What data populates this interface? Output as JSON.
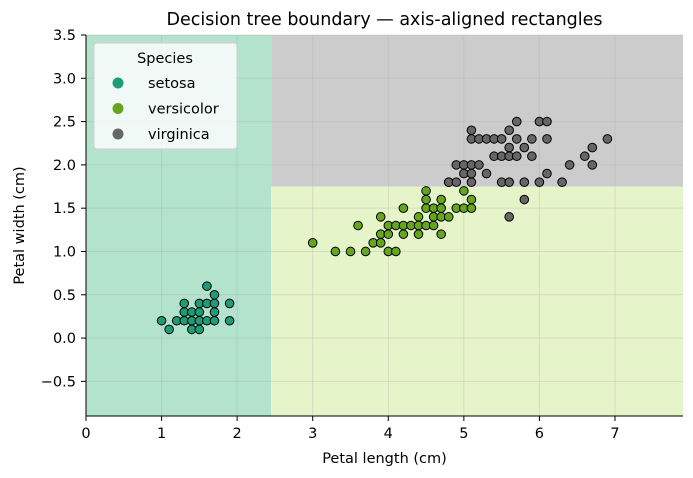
{
  "chart_data": {
    "type": "scatter",
    "title": "Decision tree boundary — axis-aligned rectangles",
    "xlabel": "Petal length (cm)",
    "ylabel": "Petal width (cm)",
    "xlim": [
      0,
      7.9
    ],
    "ylim": [
      -0.9,
      3.5
    ],
    "xticks": [
      0,
      1,
      2,
      3,
      4,
      5,
      6,
      7
    ],
    "xtick_labels": [
      "0",
      "1",
      "2",
      "3",
      "4",
      "5",
      "6",
      "7"
    ],
    "yticks": [
      -0.5,
      0.0,
      0.5,
      1.0,
      1.5,
      2.0,
      2.5,
      3.0,
      3.5
    ],
    "ytick_labels": [
      "−0.5",
      "0.0",
      "0.5",
      "1.0",
      "1.5",
      "2.0",
      "2.5",
      "3.0",
      "3.5"
    ],
    "grid": true,
    "legend": {
      "title": "Species",
      "position": "top-left"
    },
    "regions": [
      {
        "class": "setosa",
        "x": [
          0,
          2.45
        ],
        "y": [
          -0.9,
          3.5
        ],
        "color": "#b3e2cd"
      },
      {
        "class": "versicolor",
        "x": [
          2.45,
          7.9
        ],
        "y": [
          -0.9,
          1.75
        ],
        "color": "#e6f5c9"
      },
      {
        "class": "virginica",
        "x": [
          2.45,
          7.9
        ],
        "y": [
          1.75,
          3.5
        ],
        "color": "#cccccc"
      }
    ],
    "series": [
      {
        "name": "setosa",
        "color": "#1b9e77",
        "points": [
          [
            1.0,
            0.2
          ],
          [
            1.1,
            0.1
          ],
          [
            1.2,
            0.2
          ],
          [
            1.3,
            0.2
          ],
          [
            1.3,
            0.3
          ],
          [
            1.3,
            0.4
          ],
          [
            1.4,
            0.1
          ],
          [
            1.4,
            0.2
          ],
          [
            1.4,
            0.3
          ],
          [
            1.5,
            0.1
          ],
          [
            1.5,
            0.2
          ],
          [
            1.5,
            0.3
          ],
          [
            1.5,
            0.4
          ],
          [
            1.6,
            0.2
          ],
          [
            1.6,
            0.4
          ],
          [
            1.6,
            0.6
          ],
          [
            1.7,
            0.2
          ],
          [
            1.7,
            0.3
          ],
          [
            1.7,
            0.4
          ],
          [
            1.7,
            0.5
          ],
          [
            1.9,
            0.2
          ],
          [
            1.9,
            0.4
          ]
        ]
      },
      {
        "name": "versicolor",
        "color": "#66a61e",
        "points": [
          [
            3.0,
            1.1
          ],
          [
            3.3,
            1.0
          ],
          [
            3.5,
            1.0
          ],
          [
            3.6,
            1.3
          ],
          [
            3.7,
            1.0
          ],
          [
            3.8,
            1.1
          ],
          [
            3.9,
            1.1
          ],
          [
            3.9,
            1.2
          ],
          [
            3.9,
            1.4
          ],
          [
            4.0,
            1.0
          ],
          [
            4.0,
            1.2
          ],
          [
            4.0,
            1.3
          ],
          [
            4.1,
            1.0
          ],
          [
            4.1,
            1.3
          ],
          [
            4.2,
            1.2
          ],
          [
            4.2,
            1.3
          ],
          [
            4.2,
            1.5
          ],
          [
            4.3,
            1.3
          ],
          [
            4.4,
            1.2
          ],
          [
            4.4,
            1.3
          ],
          [
            4.4,
            1.4
          ],
          [
            4.5,
            1.3
          ],
          [
            4.5,
            1.5
          ],
          [
            4.5,
            1.6
          ],
          [
            4.5,
            1.7
          ],
          [
            4.6,
            1.3
          ],
          [
            4.6,
            1.4
          ],
          [
            4.6,
            1.5
          ],
          [
            4.7,
            1.2
          ],
          [
            4.7,
            1.4
          ],
          [
            4.7,
            1.5
          ],
          [
            4.7,
            1.6
          ],
          [
            4.8,
            1.4
          ],
          [
            4.8,
            1.8
          ],
          [
            4.9,
            1.5
          ],
          [
            5.0,
            1.7
          ],
          [
            5.1,
            1.6
          ],
          [
            5.0,
            1.5
          ],
          [
            5.1,
            1.5
          ]
        ]
      },
      {
        "name": "virginica",
        "color": "#666666",
        "points": [
          [
            4.8,
            1.8
          ],
          [
            4.9,
            1.8
          ],
          [
            4.9,
            2.0
          ],
          [
            5.0,
            1.9
          ],
          [
            5.0,
            2.0
          ],
          [
            5.1,
            1.8
          ],
          [
            5.1,
            1.9
          ],
          [
            5.1,
            2.0
          ],
          [
            5.1,
            2.3
          ],
          [
            5.1,
            2.4
          ],
          [
            5.2,
            2.0
          ],
          [
            5.2,
            2.3
          ],
          [
            5.3,
            1.9
          ],
          [
            5.3,
            2.3
          ],
          [
            5.4,
            2.1
          ],
          [
            5.4,
            2.3
          ],
          [
            5.5,
            1.8
          ],
          [
            5.5,
            2.1
          ],
          [
            5.5,
            2.3
          ],
          [
            5.6,
            1.4
          ],
          [
            5.6,
            1.8
          ],
          [
            5.6,
            2.1
          ],
          [
            5.6,
            2.2
          ],
          [
            5.6,
            2.4
          ],
          [
            5.7,
            2.1
          ],
          [
            5.7,
            2.3
          ],
          [
            5.7,
            2.5
          ],
          [
            5.8,
            1.6
          ],
          [
            5.8,
            1.8
          ],
          [
            5.8,
            2.2
          ],
          [
            5.9,
            2.1
          ],
          [
            5.9,
            2.3
          ],
          [
            6.0,
            1.8
          ],
          [
            6.0,
            2.5
          ],
          [
            6.1,
            1.9
          ],
          [
            6.1,
            2.3
          ],
          [
            6.1,
            2.5
          ],
          [
            6.3,
            1.8
          ],
          [
            6.4,
            2.0
          ],
          [
            6.6,
            2.1
          ],
          [
            6.7,
            2.0
          ],
          [
            6.7,
            2.2
          ],
          [
            6.9,
            2.3
          ]
        ]
      }
    ]
  }
}
